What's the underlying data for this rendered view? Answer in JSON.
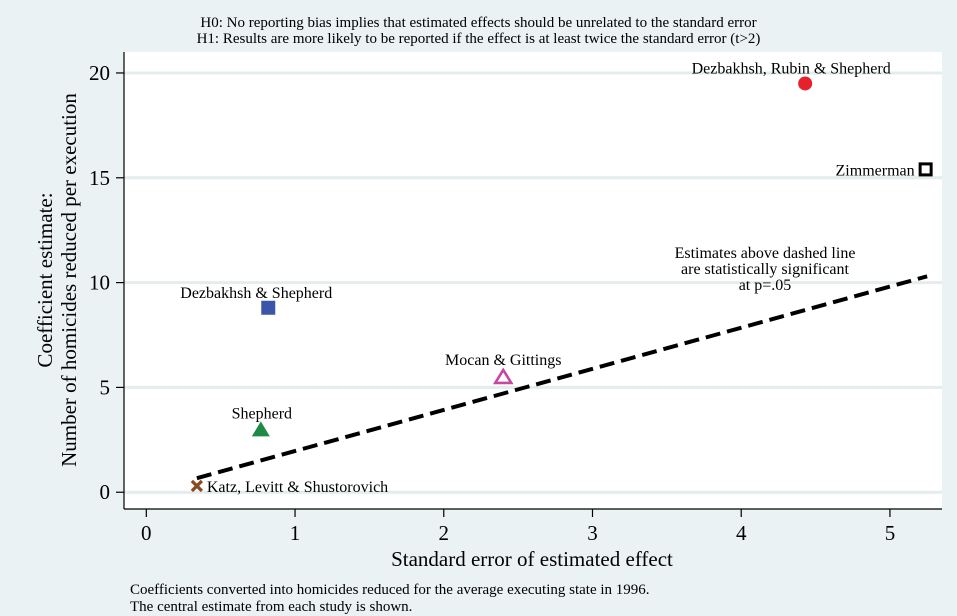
{
  "hypotheses": {
    "h0": "H0: No reporting bias implies that estimated effects should be unrelated to the standard error",
    "h1": "H1: Results are more likely to be reported if the effect is at least twice the standard error (t>2)"
  },
  "notes": {
    "line1": "Coefficients converted into homicides reduced for the average executing state in 1996.",
    "line2": "The central estimate from each study is shown."
  },
  "chart_data": {
    "type": "scatter",
    "title": "",
    "xlabel": "Standard error of estimated effect",
    "ylabel_line1": "Coefficient estimate:",
    "ylabel_line2": "Number of homicides reduced per execution",
    "xlim": [
      -0.15,
      5.35
    ],
    "ylim": [
      -0.8,
      21
    ],
    "xticks": [
      0,
      1,
      2,
      3,
      4,
      5
    ],
    "yticks": [
      0,
      5,
      10,
      15,
      20
    ],
    "grid": true,
    "points": [
      {
        "label": "Dezbakhsh, Rubin & Shepherd",
        "x": 4.43,
        "y": 19.5,
        "marker": "circle",
        "color": "#e8202a"
      },
      {
        "label": "Zimmerman",
        "x": 5.24,
        "y": 15.4,
        "marker": "hollow-square",
        "color": "#000000"
      },
      {
        "label": "Dezbakhsh & Shepherd",
        "x": 0.82,
        "y": 8.8,
        "marker": "square",
        "color": "#3b56a6"
      },
      {
        "label": "Mocan & Gittings",
        "x": 2.4,
        "y": 5.5,
        "marker": "hollow-triangle",
        "color": "#c54a9f"
      },
      {
        "label": "Shepherd",
        "x": 0.77,
        "y": 3.0,
        "marker": "triangle",
        "color": "#1e8a45"
      },
      {
        "label": "Katz, Levitt & Shustorovich",
        "x": 0.34,
        "y": 0.3,
        "marker": "x",
        "color": "#8b4a20"
      }
    ],
    "significance_line": {
      "x": [
        0.34,
        5.25
      ],
      "y": [
        0.67,
        10.3
      ],
      "style": "dashed",
      "annotation": [
        "Estimates above dashed line",
        "are statistically significant",
        "at p=.05"
      ]
    }
  }
}
